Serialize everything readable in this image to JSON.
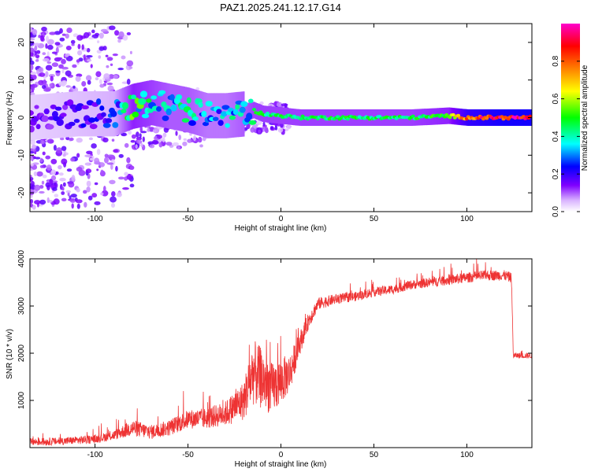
{
  "title": "PAZ1.2025.241.12.17.G14",
  "chart_data": [
    {
      "type": "heatmap",
      "name": "spectrogram",
      "xlabel": "Height of straight line (km)",
      "ylabel": "Frequency (Hz)",
      "xlim": [
        -135,
        135
      ],
      "ylim": [
        -25,
        25
      ],
      "xticks": [
        -100,
        -50,
        0,
        50,
        100
      ],
      "yticks": [
        -20,
        -10,
        0,
        10,
        20
      ],
      "colorbar": {
        "label": "Normalized spectral amplitude",
        "range": [
          0,
          1
        ],
        "ticks": [
          0.0,
          0.2,
          0.4,
          0.6,
          0.8
        ],
        "colors": [
          "#ffffff",
          "#cc99ff",
          "#7f00ff",
          "#0000ff",
          "#00ffff",
          "#00ff00",
          "#ffff00",
          "#ff7f00",
          "#ff0000",
          "#ff00cc"
        ]
      },
      "ridge": {
        "height_km": [
          -135,
          -110,
          -90,
          -80,
          -70,
          -60,
          -50,
          -40,
          -30,
          -20,
          -15,
          -10,
          0,
          10,
          30,
          50,
          70,
          90,
          100,
          110,
          120,
          135
        ],
        "frequency_hz": [
          0,
          1,
          1,
          3,
          4,
          3,
          2,
          0.5,
          0.5,
          1,
          2,
          1,
          0.5,
          0,
          0,
          0,
          0,
          0.5,
          0,
          0,
          0,
          0
        ],
        "amplitude": [
          0.15,
          0.2,
          0.25,
          0.5,
          0.45,
          0.4,
          0.4,
          0.35,
          0.35,
          0.4,
          0.45,
          0.45,
          0.45,
          0.45,
          0.45,
          0.45,
          0.45,
          0.5,
          0.8,
          0.85,
          0.9,
          0.9
        ]
      }
    },
    {
      "type": "line",
      "name": "snr",
      "xlabel": "Height of straight line (km)",
      "ylabel": "SNR (10 * v/v)",
      "xlim": [
        -135,
        135
      ],
      "ylim": [
        0,
        4000
      ],
      "xticks": [
        -100,
        -50,
        0,
        50,
        100
      ],
      "yticks": [
        1000,
        2000,
        3000,
        4000
      ],
      "series": [
        {
          "name": "SNR",
          "color": "#ee3333",
          "x": [
            -135,
            -120,
            -100,
            -90,
            -80,
            -70,
            -60,
            -50,
            -40,
            -30,
            -20,
            -15,
            -10,
            -5,
            0,
            5,
            10,
            15,
            20,
            30,
            40,
            50,
            60,
            70,
            80,
            90,
            100,
            110,
            120,
            124,
            125,
            130,
            135
          ],
          "y": [
            120,
            130,
            180,
            260,
            420,
            330,
            420,
            600,
            620,
            720,
            1000,
            1600,
            1450,
            1250,
            1400,
            1600,
            2200,
            2700,
            3050,
            3150,
            3200,
            3300,
            3350,
            3450,
            3500,
            3550,
            3600,
            3650,
            3650,
            3600,
            1950,
            1950,
            1950
          ],
          "noise": [
            80,
            80,
            90,
            100,
            180,
            150,
            170,
            200,
            220,
            260,
            420,
            700,
            650,
            550,
            500,
            400,
            250,
            170,
            130,
            110,
            100,
            100,
            100,
            100,
            100,
            110,
            110,
            110,
            110,
            110,
            60,
            60,
            60
          ]
        }
      ]
    }
  ]
}
